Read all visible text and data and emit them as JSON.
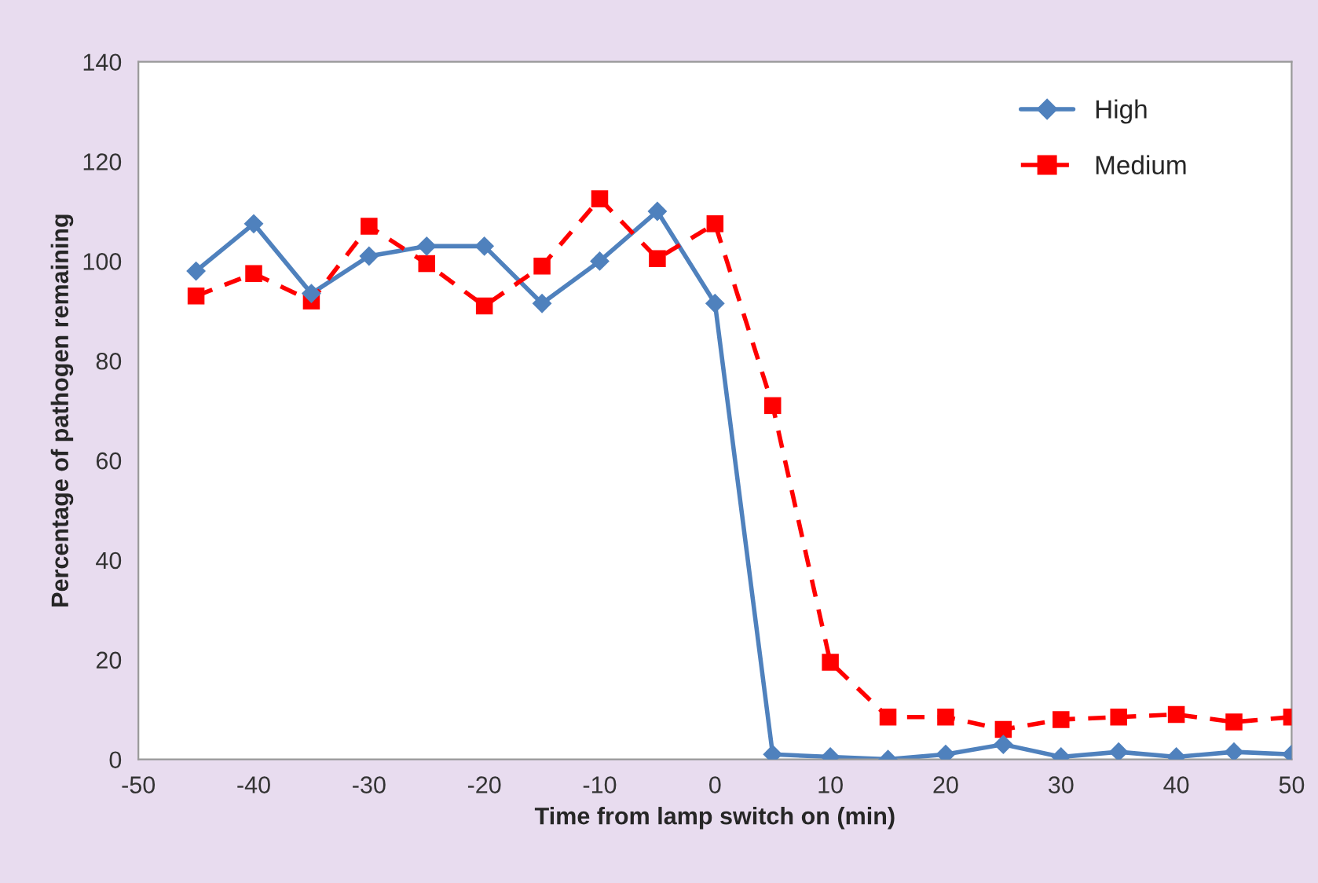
{
  "chart_data": {
    "type": "line",
    "xlabel": "Time from lamp switch on (min)",
    "ylabel": "Percentage of pathogen remaining",
    "x": [
      -45,
      -40,
      -35,
      -30,
      -25,
      -20,
      -15,
      -10,
      -5,
      0,
      5,
      10,
      15,
      20,
      25,
      30,
      35,
      40,
      45,
      50
    ],
    "series": [
      {
        "name": "High",
        "color": "#4f81bd",
        "marker": "diamond",
        "line_style": "solid",
        "values": [
          98,
          107.5,
          93.5,
          101,
          103,
          103,
          91.5,
          100,
          110,
          91.5,
          1,
          0.5,
          0,
          1,
          3,
          0.5,
          1.5,
          0.5,
          1.5,
          1
        ]
      },
      {
        "name": "Medium",
        "color": "#ff0000",
        "marker": "square",
        "line_style": "dashed",
        "values": [
          93,
          97.5,
          92,
          107,
          99.5,
          91,
          99,
          112.5,
          100.5,
          107.5,
          71,
          19.5,
          8.5,
          8.5,
          6,
          8,
          8.5,
          9,
          7.5,
          8.5
        ]
      }
    ],
    "xlim": [
      -50,
      50
    ],
    "xticks": [
      -50,
      -40,
      -30,
      -20,
      -10,
      0,
      10,
      20,
      30,
      40,
      50
    ],
    "ylim": [
      0,
      140
    ],
    "yticks": [
      0,
      20,
      40,
      60,
      80,
      100,
      120,
      140
    ],
    "grid": false,
    "legend": "top right"
  }
}
